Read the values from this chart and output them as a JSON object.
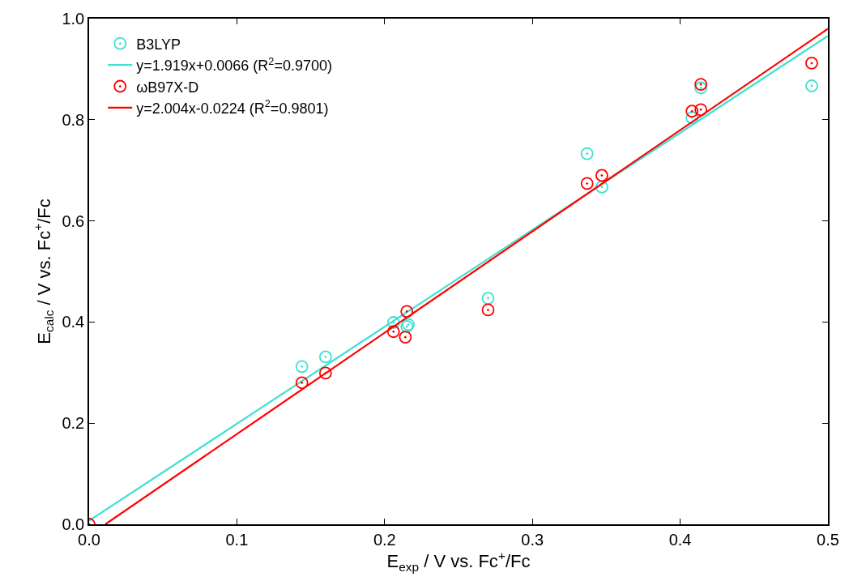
{
  "chart_data": {
    "type": "scatter",
    "xlabel": "E$_{exp}$ / V vs. Fc$^{+}$/Fc",
    "ylabel": "E$_{calc}$ / V vs. Fc$^{+}$/Fc",
    "xlim": [
      0,
      0.5
    ],
    "xticks": [
      {
        "value": 0,
        "label": "0.0"
      },
      0.1,
      0.2,
      0.3,
      0.4,
      0.5
    ],
    "ylim": [
      0,
      1
    ],
    "yticks": [
      {
        "value": 0,
        "label": "0.0"
      },
      0.2,
      0.4,
      0.6,
      0.8,
      {
        "value": 1,
        "label": "1.0"
      }
    ],
    "legend": "top left",
    "series": [
      {
        "name": "B3LYP",
        "marker": "circle",
        "color": "#40e0d0",
        "x": [
          0.144,
          0.16,
          0.206,
          0.215,
          0.216,
          0.27,
          0.337,
          0.347,
          0.408,
          0.414,
          0.489
        ],
        "values": [
          0.312,
          0.331,
          0.399,
          0.391,
          0.395,
          0.447,
          0.733,
          0.667,
          0.804,
          0.863,
          0.867
        ]
      },
      {
        "name": "y=1.919x+0.0066 (R$^{2}$=0.9700)",
        "type": "line",
        "marker": "none",
        "color": "#40e0d0",
        "x": [
          0,
          0.5
        ],
        "values": [
          0.007,
          0.966
        ]
      },
      {
        "name": "ωB97X-D",
        "marker": "circle",
        "color": "#ff0000",
        "x": [
          0,
          0.144,
          0.16,
          0.206,
          0.214,
          0.215,
          0.27,
          0.337,
          0.347,
          0.408,
          0.414,
          0.414,
          0.489
        ],
        "values": [
          0,
          0.28,
          0.299,
          0.381,
          0.37,
          0.421,
          0.424,
          0.674,
          0.69,
          0.817,
          0.82,
          0.87,
          0.912
        ]
      },
      {
        "name": "y=2.004x-0.0224 (R$^{2}$=0.9801)",
        "type": "line",
        "marker": "none",
        "color": "#ff0000",
        "x": [
          0.011,
          0.5
        ],
        "values": [
          0,
          0.98
        ]
      }
    ]
  }
}
